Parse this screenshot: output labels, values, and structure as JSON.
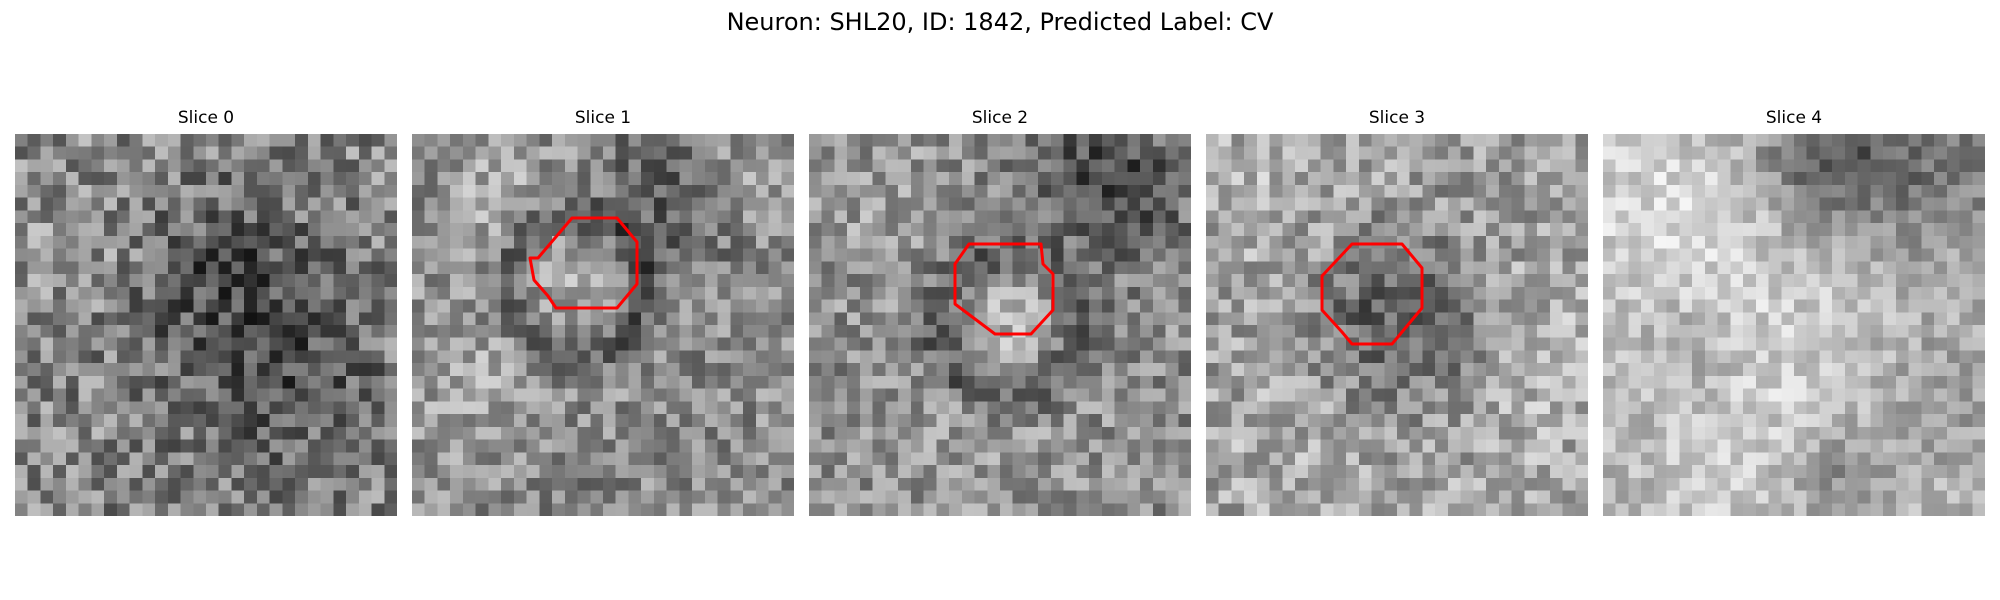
{
  "figure": {
    "title": "Neuron: SHL20, ID: 1842, Predicted Label: CV"
  },
  "slices": [
    {
      "title": "Slice 0",
      "has_contour": false
    },
    {
      "title": "Slice 1",
      "has_contour": true
    },
    {
      "title": "Slice 2",
      "has_contour": true
    },
    {
      "title": "Slice 3",
      "has_contour": true
    },
    {
      "title": "Slice 4",
      "has_contour": false
    }
  ],
  "colors": {
    "contour": "#ff0000",
    "background": "#ffffff"
  },
  "colormap": "gray"
}
